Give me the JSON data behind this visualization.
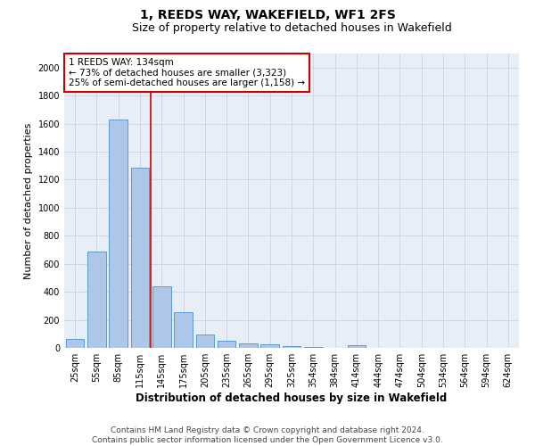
{
  "title": "1, REEDS WAY, WAKEFIELD, WF1 2FS",
  "subtitle": "Size of property relative to detached houses in Wakefield",
  "xlabel": "Distribution of detached houses by size in Wakefield",
  "ylabel": "Number of detached properties",
  "categories": [
    "25sqm",
    "55sqm",
    "85sqm",
    "115sqm",
    "145sqm",
    "175sqm",
    "205sqm",
    "235sqm",
    "265sqm",
    "295sqm",
    "325sqm",
    "354sqm",
    "384sqm",
    "414sqm",
    "444sqm",
    "474sqm",
    "504sqm",
    "534sqm",
    "564sqm",
    "594sqm",
    "624sqm"
  ],
  "values": [
    65,
    690,
    1630,
    1285,
    440,
    255,
    95,
    50,
    35,
    25,
    15,
    8,
    0,
    18,
    0,
    0,
    0,
    0,
    0,
    0,
    0
  ],
  "bar_color": "#aec6e8",
  "bar_edge_color": "#5b9bd5",
  "vertical_line_color": "#cc0000",
  "annotation_text": "1 REEDS WAY: 134sqm\n← 73% of detached houses are smaller (3,323)\n25% of semi-detached houses are larger (1,158) →",
  "annotation_box_color": "#ffffff",
  "annotation_box_edge_color": "#cc0000",
  "ylim": [
    0,
    2100
  ],
  "yticks": [
    0,
    200,
    400,
    600,
    800,
    1000,
    1200,
    1400,
    1600,
    1800,
    2000
  ],
  "grid_color": "#d0d8e8",
  "background_color": "#e8eef8",
  "footer_line1": "Contains HM Land Registry data © Crown copyright and database right 2024.",
  "footer_line2": "Contains public sector information licensed under the Open Government Licence v3.0.",
  "title_fontsize": 10,
  "subtitle_fontsize": 9,
  "xlabel_fontsize": 8.5,
  "ylabel_fontsize": 8,
  "tick_fontsize": 7,
  "footer_fontsize": 6.5,
  "annotation_fontsize": 7.5
}
